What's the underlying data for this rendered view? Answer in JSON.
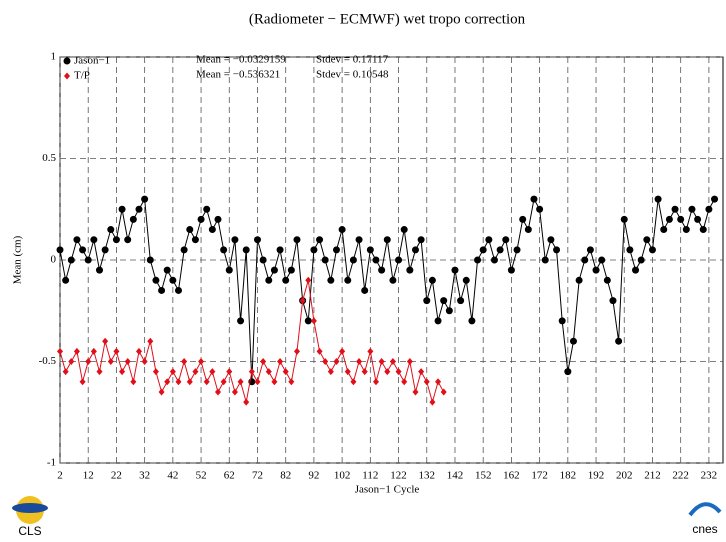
{
  "chart_data": {
    "type": "scatter",
    "title": "(Radiometer − ECMWF) wet tropo correction",
    "x_label": "Jason−1 Cycle",
    "y_label": "Mean (cm)",
    "annotations": [
      "Mean = −0.0329159",
      "Stdev = 0.17117",
      "Mean = −0.536321",
      "Stdev = 0.10548"
    ],
    "xlim": [
      2,
      237
    ],
    "xticks": [
      2,
      12,
      22,
      32,
      42,
      52,
      62,
      72,
      82,
      92,
      102,
      112,
      122,
      132,
      142,
      152,
      162,
      172,
      182,
      192,
      202,
      212,
      222,
      232
    ],
    "ylim": [
      -1,
      1
    ],
    "yticks": [
      -1,
      -0.5,
      0,
      0.5,
      1
    ],
    "grid": true,
    "series": [
      {
        "name": "Jason−1",
        "color": "#000000",
        "marker": "circle",
        "x": [
          2,
          4,
          6,
          8,
          10,
          12,
          14,
          16,
          18,
          20,
          22,
          24,
          26,
          28,
          30,
          32,
          34,
          36,
          38,
          40,
          42,
          44,
          46,
          48,
          50,
          52,
          54,
          56,
          58,
          60,
          62,
          64,
          66,
          68,
          70,
          72,
          74,
          76,
          78,
          80,
          82,
          84,
          86,
          88,
          90,
          92,
          94,
          96,
          98,
          100,
          102,
          104,
          106,
          108,
          110,
          112,
          114,
          116,
          118,
          120,
          122,
          124,
          126,
          128,
          130,
          132,
          134,
          136,
          138,
          140,
          142,
          144,
          146,
          148,
          150,
          152,
          154,
          156,
          158,
          160,
          162,
          164,
          166,
          168,
          170,
          172,
          174,
          176,
          178,
          180,
          182,
          184,
          186,
          188,
          190,
          192,
          194,
          196,
          198,
          200,
          202,
          204,
          206,
          208,
          210,
          212,
          214,
          216,
          218,
          220,
          222,
          224,
          226,
          228,
          230,
          232,
          234
        ],
        "values": [
          0.05,
          -0.1,
          0.0,
          0.1,
          0.05,
          0.0,
          0.1,
          -0.05,
          0.05,
          0.15,
          0.1,
          0.25,
          0.1,
          0.2,
          0.25,
          0.3,
          0.0,
          -0.1,
          -0.15,
          -0.05,
          -0.1,
          -0.15,
          0.05,
          0.15,
          0.1,
          0.2,
          0.25,
          0.15,
          0.2,
          0.05,
          -0.05,
          0.1,
          -0.3,
          0.05,
          -0.6,
          0.1,
          0.0,
          -0.1,
          -0.05,
          0.05,
          -0.1,
          -0.05,
          0.1,
          -0.2,
          -0.3,
          0.05,
          0.1,
          0.0,
          -0.1,
          0.05,
          0.15,
          -0.1,
          0.0,
          0.1,
          -0.15,
          0.05,
          0.0,
          -0.05,
          0.1,
          -0.1,
          0.0,
          0.15,
          -0.05,
          0.05,
          0.1,
          -0.2,
          -0.1,
          -0.3,
          -0.2,
          -0.25,
          -0.05,
          -0.2,
          -0.1,
          -0.3,
          0.0,
          0.05,
          0.1,
          0.0,
          0.05,
          0.1,
          -0.05,
          0.05,
          0.2,
          0.15,
          0.3,
          0.25,
          0.0,
          0.1,
          0.05,
          -0.3,
          -0.55,
          -0.4,
          -0.1,
          0.0,
          0.05,
          -0.05,
          0.0,
          -0.1,
          -0.2,
          -0.4,
          0.2,
          0.05,
          -0.05,
          0.0,
          0.1,
          0.05,
          0.3,
          0.15,
          0.2,
          0.25,
          0.2,
          0.15,
          0.25,
          0.2,
          0.15,
          0.25,
          0.3
        ]
      },
      {
        "name": "T/P",
        "color": "#e0101a",
        "marker": "diamond",
        "x": [
          2,
          4,
          6,
          8,
          10,
          12,
          14,
          16,
          18,
          20,
          22,
          24,
          26,
          28,
          30,
          32,
          34,
          36,
          38,
          40,
          42,
          44,
          46,
          48,
          50,
          52,
          54,
          56,
          58,
          60,
          62,
          64,
          66,
          68,
          70,
          72,
          74,
          76,
          78,
          80,
          82,
          84,
          86,
          88,
          90,
          92,
          94,
          96,
          98,
          100,
          102,
          104,
          106,
          108,
          110,
          112,
          114,
          116,
          118,
          120,
          122,
          124,
          126,
          128,
          130,
          132,
          134,
          136,
          138
        ],
        "values": [
          -0.45,
          -0.55,
          -0.5,
          -0.45,
          -0.6,
          -0.5,
          -0.45,
          -0.55,
          -0.4,
          -0.5,
          -0.45,
          -0.55,
          -0.5,
          -0.6,
          -0.45,
          -0.5,
          -0.4,
          -0.55,
          -0.65,
          -0.6,
          -0.55,
          -0.6,
          -0.5,
          -0.6,
          -0.55,
          -0.5,
          -0.6,
          -0.55,
          -0.65,
          -0.6,
          -0.55,
          -0.65,
          -0.6,
          -0.7,
          -0.55,
          -0.6,
          -0.5,
          -0.55,
          -0.6,
          -0.5,
          -0.55,
          -0.6,
          -0.45,
          -0.2,
          -0.1,
          -0.3,
          -0.45,
          -0.5,
          -0.55,
          -0.5,
          -0.45,
          -0.55,
          -0.6,
          -0.5,
          -0.55,
          -0.45,
          -0.6,
          -0.5,
          -0.55,
          -0.5,
          -0.55,
          -0.6,
          -0.5,
          -0.65,
          -0.55,
          -0.6,
          -0.7,
          -0.6,
          -0.65
        ]
      }
    ]
  },
  "logos": [
    "CLS",
    "cnes"
  ]
}
